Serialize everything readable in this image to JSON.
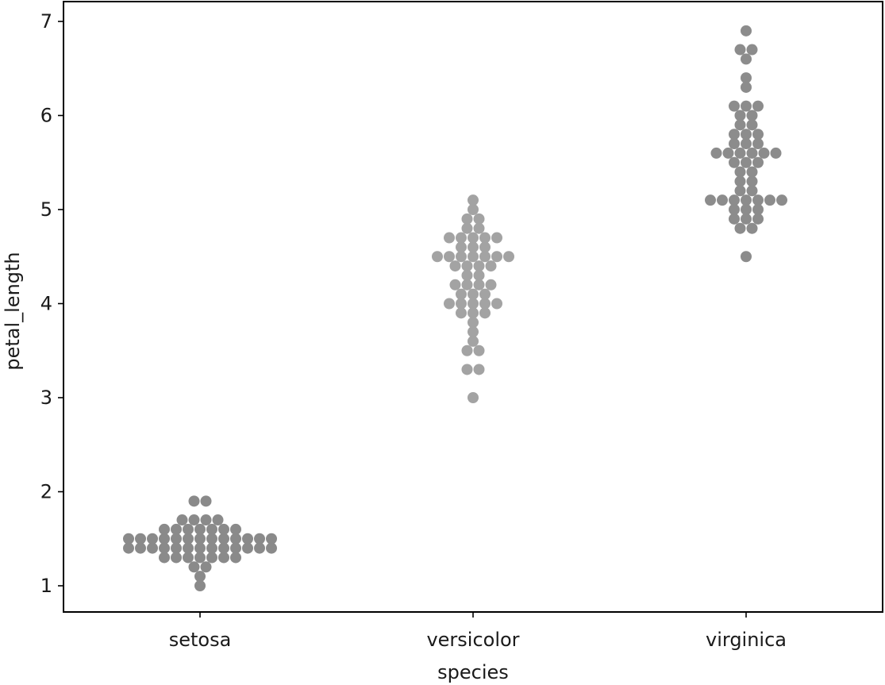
{
  "chart_data": {
    "type": "scatter",
    "subtype": "swarm",
    "title": "",
    "xlabel": "species",
    "ylabel": "petal_length",
    "categories": [
      "setosa",
      "versicolor",
      "virginica"
    ],
    "ylim": [
      0.72,
      7.2
    ],
    "yticks": [
      1,
      2,
      3,
      4,
      5,
      6,
      7
    ],
    "grid": false,
    "legend": "none",
    "series": [
      {
        "category": "setosa",
        "color": "#8a8a8a",
        "values": [
          1.4,
          1.4,
          1.3,
          1.5,
          1.4,
          1.7,
          1.4,
          1.5,
          1.4,
          1.5,
          1.5,
          1.6,
          1.4,
          1.1,
          1.2,
          1.5,
          1.3,
          1.4,
          1.7,
          1.5,
          1.7,
          1.5,
          1.0,
          1.7,
          1.9,
          1.6,
          1.6,
          1.5,
          1.4,
          1.6,
          1.6,
          1.5,
          1.5,
          1.4,
          1.5,
          1.2,
          1.3,
          1.4,
          1.3,
          1.5,
          1.3,
          1.3,
          1.3,
          1.6,
          1.9,
          1.4,
          1.6,
          1.4,
          1.5,
          1.4
        ]
      },
      {
        "category": "versicolor",
        "color": "#a3a3a3",
        "values": [
          4.7,
          4.5,
          4.9,
          4.0,
          4.6,
          4.5,
          4.7,
          3.3,
          4.6,
          3.9,
          3.5,
          4.2,
          4.0,
          4.7,
          3.6,
          4.4,
          4.5,
          4.1,
          4.5,
          3.9,
          4.8,
          4.0,
          4.9,
          4.7,
          4.3,
          4.4,
          4.8,
          5.0,
          4.5,
          3.5,
          3.8,
          3.7,
          3.9,
          5.1,
          4.5,
          4.5,
          4.7,
          4.4,
          4.1,
          4.0,
          4.4,
          4.6,
          4.0,
          3.3,
          4.2,
          4.2,
          4.2,
          4.3,
          3.0,
          4.1
        ]
      },
      {
        "category": "virginica",
        "color": "#8c8c8c",
        "values": [
          6.0,
          5.1,
          5.9,
          5.6,
          5.8,
          6.6,
          4.5,
          6.3,
          5.8,
          6.1,
          5.1,
          5.3,
          5.5,
          5.0,
          5.1,
          5.3,
          5.5,
          6.7,
          6.9,
          5.0,
          5.7,
          4.9,
          6.7,
          4.9,
          5.7,
          6.0,
          4.8,
          4.9,
          5.6,
          5.8,
          6.1,
          6.4,
          5.6,
          5.1,
          5.6,
          6.1,
          5.6,
          5.5,
          4.8,
          5.4,
          5.6,
          5.1,
          5.1,
          5.9,
          5.7,
          5.2,
          5.0,
          5.2,
          5.4,
          5.1
        ]
      }
    ]
  }
}
